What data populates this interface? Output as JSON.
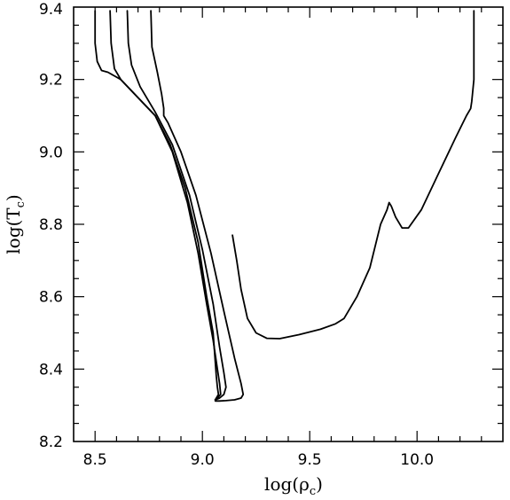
{
  "chart_data": {
    "type": "line",
    "title": "",
    "xlabel": "log(ρ",
    "xlabel_sub": "c",
    "xlabel_close": ")",
    "ylabel": "log(T",
    "ylabel_sub": "c",
    "ylabel_close": ")",
    "xlim": [
      8.4,
      10.4
    ],
    "ylim": [
      8.2,
      9.4
    ],
    "grid": false,
    "legend": "none",
    "x_ticks": [
      8.5,
      9.0,
      9.5,
      10.0
    ],
    "x_tick_labels": [
      "8.5",
      "9.0",
      "9.5",
      "10.0"
    ],
    "y_ticks": [
      8.2,
      8.4,
      8.6,
      8.8,
      9.0,
      9.2,
      9.4
    ],
    "y_tick_labels": [
      "8.2",
      "8.4",
      "8.6",
      "8.8",
      "9.0",
      "9.2",
      "9.4"
    ],
    "series": [
      {
        "x": [
          8.5,
          8.5,
          8.51,
          8.53,
          8.56,
          8.62,
          8.7,
          8.78,
          8.85,
          8.92,
          8.98,
          9.02,
          9.05,
          9.06,
          9.065,
          9.07,
          9.075,
          9.06
        ],
        "y": [
          9.39,
          9.3,
          9.25,
          9.225,
          9.22,
          9.2,
          9.15,
          9.1,
          9.02,
          8.9,
          8.75,
          8.6,
          8.5,
          8.42,
          8.38,
          8.35,
          8.33,
          8.315
        ]
      },
      {
        "x": [
          8.57,
          8.575,
          8.59,
          8.62,
          8.7,
          8.78,
          8.86,
          8.93,
          8.98,
          9.02,
          9.05,
          9.07,
          9.08,
          9.085,
          9.07,
          9.06
        ],
        "y": [
          9.39,
          9.3,
          9.23,
          9.2,
          9.15,
          9.1,
          9.0,
          8.86,
          8.72,
          8.58,
          8.48,
          8.4,
          8.36,
          8.33,
          8.32,
          8.315
        ]
      },
      {
        "x": [
          8.65,
          8.655,
          8.67,
          8.71,
          8.78,
          8.86,
          8.94,
          9.0,
          9.05,
          9.08,
          9.1,
          9.11,
          9.1,
          9.08,
          9.06
        ],
        "y": [
          9.39,
          9.3,
          9.24,
          9.18,
          9.11,
          9.02,
          8.88,
          8.73,
          8.58,
          8.46,
          8.39,
          8.35,
          8.33,
          8.32,
          8.315
        ]
      },
      {
        "x": [
          8.76,
          8.765,
          8.79,
          8.81,
          8.82,
          8.82,
          8.84,
          8.9,
          8.97,
          9.04,
          9.1,
          9.15,
          9.18,
          9.19,
          9.18,
          9.15,
          9.11,
          9.08,
          9.06
        ],
        "y": [
          9.39,
          9.29,
          9.22,
          9.16,
          9.12,
          9.1,
          9.08,
          9.0,
          8.88,
          8.72,
          8.56,
          8.43,
          8.36,
          8.33,
          8.32,
          8.315,
          8.313,
          8.312,
          8.312
        ]
      },
      {
        "x": [
          9.14,
          9.16,
          9.18,
          9.21,
          9.25,
          9.3,
          9.36,
          9.45,
          9.55,
          9.62,
          9.66,
          9.72,
          9.78,
          9.83,
          9.86,
          9.87,
          9.88,
          9.9,
          9.93,
          9.96,
          10.02,
          10.1,
          10.18,
          10.23,
          10.25,
          10.255,
          10.26,
          10.265,
          10.265
        ],
        "y": [
          8.77,
          8.7,
          8.62,
          8.54,
          8.5,
          8.485,
          8.484,
          8.495,
          8.51,
          8.525,
          8.54,
          8.6,
          8.68,
          8.8,
          8.84,
          8.86,
          8.85,
          8.82,
          8.79,
          8.79,
          8.84,
          8.94,
          9.04,
          9.1,
          9.12,
          9.14,
          9.17,
          9.2,
          9.39
        ]
      }
    ]
  }
}
